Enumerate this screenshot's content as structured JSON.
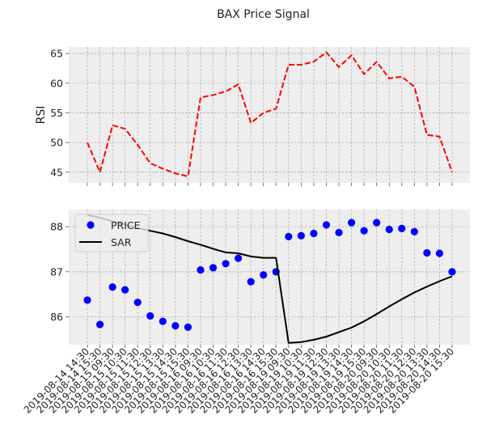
{
  "chart_data": {
    "title": "BAX Price Signal",
    "x_labels": [
      "2019-08-14 14:30",
      "2019-08-14 15:30",
      "2019-08-15 09:30",
      "2019-08-15 10:30",
      "2019-08-15 11:30",
      "2019-08-15 12:30",
      "2019-08-15 13:30",
      "2019-08-15 14:30",
      "2019-08-15 15:30",
      "2019-08-16 09:30",
      "2019-08-16 10:30",
      "2019-08-16 11:30",
      "2019-08-16 12:30",
      "2019-08-16 13:30",
      "2019-08-16 14:30",
      "2019-08-16 15:30",
      "2019-08-19 09:30",
      "2019-08-19 10:30",
      "2019-08-19 11:30",
      "2019-08-19 12:30",
      "2019-08-19 13:30",
      "2019-08-19 14:30",
      "2019-08-19 15:30",
      "2019-08-20 09:30",
      "2019-08-20 10:30",
      "2019-08-20 11:30",
      "2019-08-20 12:30",
      "2019-08-20 13:30",
      "2019-08-20 14:30",
      "2019-08-20 15:30"
    ],
    "charts": [
      {
        "type": "line",
        "ylabel": "RSI",
        "ylim": [
          43.2,
          66.1
        ],
        "yticks": [
          45,
          50,
          55,
          60,
          65
        ],
        "grid": true,
        "series": [
          {
            "name": "RSI",
            "color": "#ff0000",
            "style": "dashed",
            "values": [
              50.0,
              45.0,
              52.9,
              52.3,
              49.6,
              46.5,
              45.6,
              44.8,
              44.3,
              57.6,
              58.0,
              58.6,
              59.8,
              53.3,
              55.0,
              55.7,
              63.1,
              63.1,
              63.6,
              65.2,
              62.7,
              64.7,
              61.5,
              63.6,
              60.8,
              61.1,
              59.4,
              51.3,
              51.0,
              45.0
            ]
          }
        ]
      },
      {
        "type": "scatter+line",
        "ylabel": "",
        "ylim": [
          85.38,
          88.38
        ],
        "yticks": [
          86,
          87,
          88
        ],
        "grid": true,
        "legend": "upper-left",
        "series": [
          {
            "name": "PRICE",
            "color": "#0000ff",
            "marker": "circle",
            "values": [
              86.37,
              85.83,
              86.66,
              86.6,
              86.32,
              86.02,
              85.9,
              85.8,
              85.77,
              87.04,
              87.09,
              87.18,
              87.3,
              86.78,
              86.93,
              87.0,
              87.78,
              87.8,
              87.85,
              88.04,
              87.87,
              88.09,
              87.91,
              88.09,
              87.94,
              87.96,
              87.89,
              87.42,
              87.41,
              87.0
            ]
          },
          {
            "name": "SAR",
            "color": "#000000",
            "style": "solid",
            "values": [
              88.26,
              88.2,
              88.12,
              88.05,
              87.97,
              87.91,
              87.85,
              87.77,
              87.68,
              87.6,
              87.51,
              87.43,
              87.41,
              87.34,
              87.31,
              87.31,
              85.42,
              85.44,
              85.49,
              85.56,
              85.66,
              85.76,
              85.9,
              86.06,
              86.23,
              86.39,
              86.54,
              86.67,
              86.79,
              86.9
            ]
          }
        ]
      }
    ]
  }
}
